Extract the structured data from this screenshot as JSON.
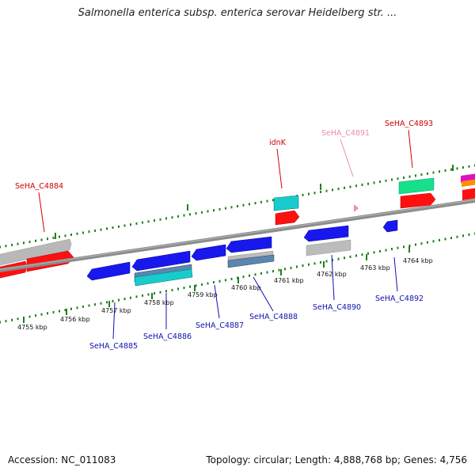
{
  "title": "Salmonella enterica subsp. enterica serovar Heidelberg str. ...",
  "footer": {
    "accession": "Accession: NC_011083",
    "summary": "Topology: circular; Length: 4,888,768 bp; Genes: 4,756"
  },
  "colors": {
    "backbone": "#8c8c8c",
    "tick": "#1f7f1f",
    "forward_label": "#d00000",
    "pseudo_label": "#f08ab4",
    "reverse_label": "#1010b0"
  },
  "ticks": [
    {
      "label": "4755 kbp",
      "kbp": 4755
    },
    {
      "label": "4756 kbp",
      "kbp": 4756
    },
    {
      "label": "4757 kbp",
      "kbp": 4757
    },
    {
      "label": "4758 kbp",
      "kbp": 4758
    },
    {
      "label": "4759 kbp",
      "kbp": 4759
    },
    {
      "label": "4760 kbp",
      "kbp": 4760
    },
    {
      "label": "4761 kbp",
      "kbp": 4761
    },
    {
      "label": "4762 kbp",
      "kbp": 4762
    },
    {
      "label": "4763 kbp",
      "kbp": 4763
    },
    {
      "label": "4764 kbp",
      "kbp": 4764
    }
  ],
  "gene_labels": [
    {
      "text": "SeHA_C4884",
      "strand": "forward"
    },
    {
      "text": "idnK",
      "strand": "forward"
    },
    {
      "text": "SeHA_C4891",
      "strand": "pseudo"
    },
    {
      "text": "SeHA_C4893",
      "strand": "forward"
    },
    {
      "text": "SeHA_C4885",
      "strand": "reverse"
    },
    {
      "text": "SeHA_C4886",
      "strand": "reverse"
    },
    {
      "text": "SeHA_C4887",
      "strand": "reverse"
    },
    {
      "text": "SeHA_C4888",
      "strand": "reverse"
    },
    {
      "text": "SeHA_C4890",
      "strand": "reverse"
    },
    {
      "text": "SeHA_C4892",
      "strand": "reverse"
    }
  ]
}
